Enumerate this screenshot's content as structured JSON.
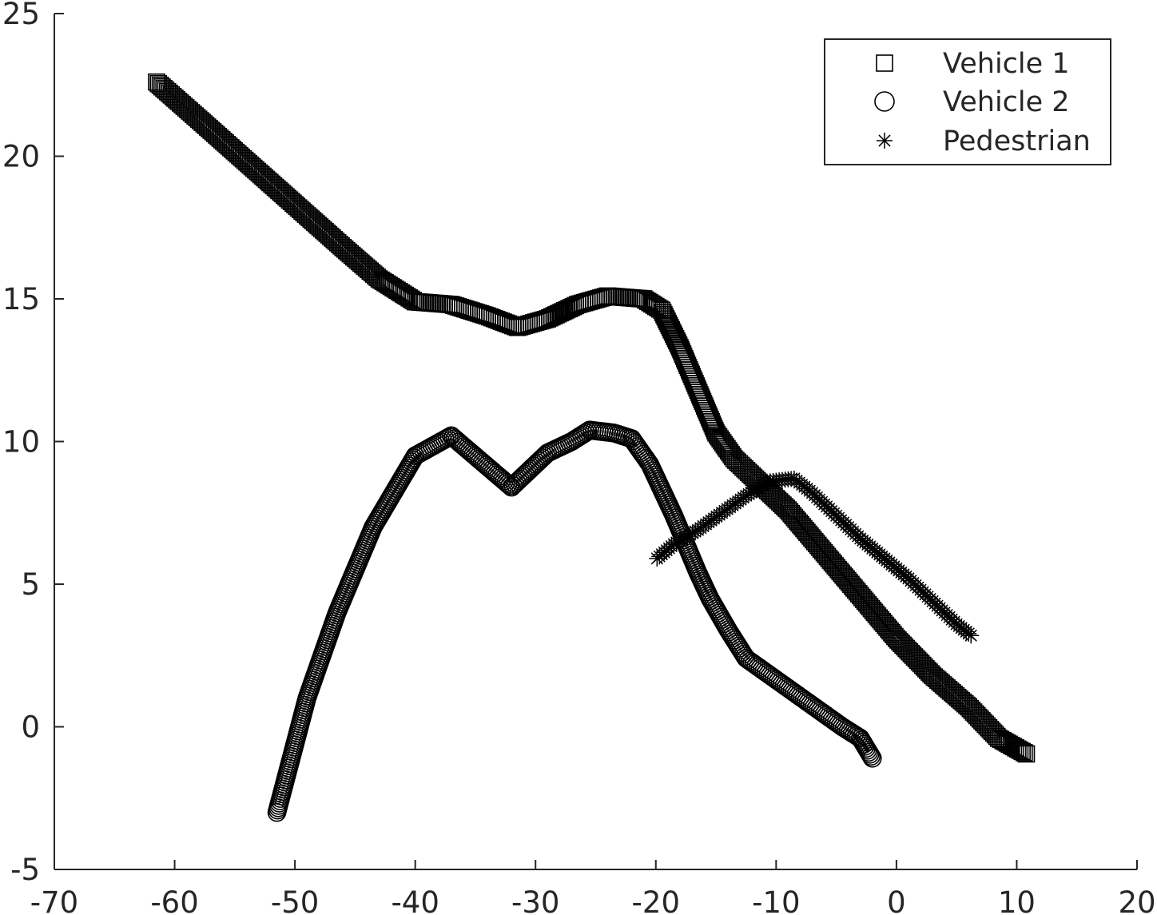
{
  "chart_data": {
    "type": "scatter",
    "title": "",
    "xlabel": "",
    "ylabel": "",
    "xlim": [
      -70,
      20
    ],
    "ylim": [
      -5,
      25
    ],
    "xticks": [
      -70,
      -60,
      -50,
      -40,
      -30,
      -20,
      -10,
      0,
      10,
      20
    ],
    "yticks": [
      -5,
      0,
      5,
      10,
      15,
      20,
      25
    ],
    "grid": false,
    "legend_position": "top-right",
    "series": [
      {
        "name": "Vehicle 1",
        "marker": "square",
        "color": "#000000",
        "points": [
          [
            -61.5,
            22.6
          ],
          [
            -58,
            21.3
          ],
          [
            -54,
            19.8
          ],
          [
            -50,
            18.3
          ],
          [
            -46,
            16.8
          ],
          [
            -43,
            15.7
          ],
          [
            -40,
            14.9
          ],
          [
            -37,
            14.8
          ],
          [
            -34,
            14.4
          ],
          [
            -31.5,
            14.0
          ],
          [
            -29,
            14.3
          ],
          [
            -26.5,
            14.8
          ],
          [
            -24,
            15.1
          ],
          [
            -21,
            15.0
          ],
          [
            -19.5,
            14.6
          ],
          [
            -18,
            13.3
          ],
          [
            -16.5,
            11.8
          ],
          [
            -15,
            10.3
          ],
          [
            -13.5,
            9.4
          ],
          [
            -12,
            8.8
          ],
          [
            -9,
            7.6
          ],
          [
            -6,
            6.1
          ],
          [
            -3,
            4.6
          ],
          [
            0,
            3.1
          ],
          [
            3,
            1.8
          ],
          [
            6,
            0.7
          ],
          [
            8.5,
            -0.4
          ],
          [
            10.8,
            -0.95
          ]
        ]
      },
      {
        "name": "Vehicle 2",
        "marker": "circle",
        "color": "#000000",
        "points": [
          [
            -51.5,
            -3.0
          ],
          [
            -49,
            1.0
          ],
          [
            -46.5,
            4.0
          ],
          [
            -43.5,
            7.0
          ],
          [
            -40,
            9.5
          ],
          [
            -37,
            10.2
          ],
          [
            -32,
            8.4
          ],
          [
            -29,
            9.6
          ],
          [
            -27,
            10.0
          ],
          [
            -25.5,
            10.4
          ],
          [
            -23.5,
            10.3
          ],
          [
            -22,
            10.1
          ],
          [
            -20.5,
            9.2
          ],
          [
            -19.5,
            8.3
          ],
          [
            -18.5,
            7.4
          ],
          [
            -17.5,
            6.4
          ],
          [
            -16.5,
            5.4
          ],
          [
            -15.5,
            4.5
          ],
          [
            -14,
            3.4
          ],
          [
            -12.5,
            2.4
          ],
          [
            -10.5,
            1.8
          ],
          [
            -8.5,
            1.2
          ],
          [
            -6.5,
            0.6
          ],
          [
            -4.5,
            0.0
          ],
          [
            -3,
            -0.4
          ],
          [
            -2,
            -1.1
          ]
        ]
      },
      {
        "name": "Pedestrian",
        "marker": "asterisk",
        "color": "#000000",
        "points": [
          [
            -19.9,
            5.9
          ],
          [
            -18.5,
            6.4
          ],
          [
            -16.5,
            6.9
          ],
          [
            -14.5,
            7.5
          ],
          [
            -12.5,
            8.1
          ],
          [
            -10.5,
            8.6
          ],
          [
            -8.5,
            8.7
          ],
          [
            -7,
            8.2
          ],
          [
            -5,
            7.4
          ],
          [
            -3,
            6.6
          ],
          [
            -1,
            5.9
          ],
          [
            1,
            5.2
          ],
          [
            3,
            4.4
          ],
          [
            5,
            3.6
          ],
          [
            6.2,
            3.2
          ]
        ]
      }
    ]
  }
}
